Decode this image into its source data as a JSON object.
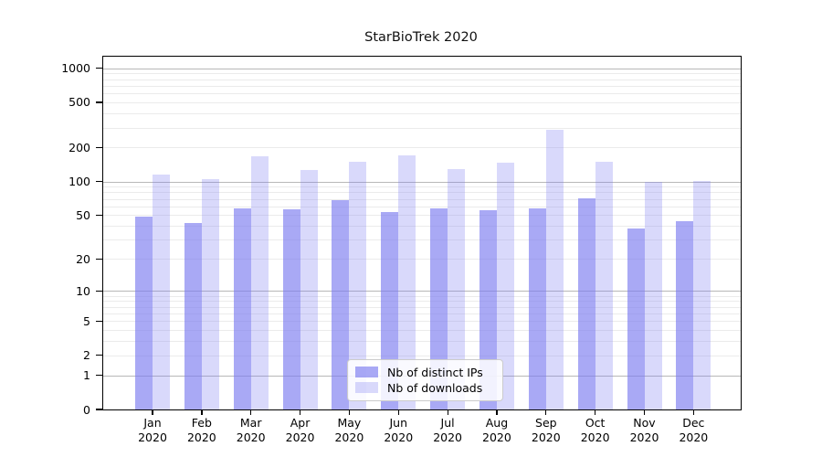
{
  "chart_data": {
    "type": "bar",
    "title": "StarBioTrek 2020",
    "categories": [
      "Jan 2020",
      "Feb 2020",
      "Mar 2020",
      "Apr 2020",
      "May 2020",
      "Jun 2020",
      "Jul 2020",
      "Aug 2020",
      "Sep 2020",
      "Oct 2020",
      "Nov 2020",
      "Dec 2020"
    ],
    "series": [
      {
        "name": "Nb of distinct IPs",
        "values": [
          49,
          43,
          58,
          57,
          68,
          53,
          58,
          55,
          58,
          71,
          38,
          44
        ],
        "color_rgba": "rgba(124,124,240,0.66)"
      },
      {
        "name": "Nb of downloads",
        "values": [
          115,
          105,
          166,
          127,
          150,
          170,
          130,
          146,
          285,
          150,
          100,
          101
        ],
        "color_rgba": "rgba(124,124,240,0.29)"
      }
    ],
    "xlabel": "",
    "ylabel": "",
    "y_scale": "symlog",
    "y_ticks": [
      1000,
      500,
      200,
      100,
      50,
      20,
      10,
      5,
      2,
      1,
      0
    ],
    "ylim": [
      0,
      1255
    ],
    "grid": true,
    "gridline_major_values": [
      1,
      10,
      100,
      1000
    ],
    "gridline_minor_values": [
      2,
      3,
      4,
      5,
      6,
      7,
      8,
      9,
      20,
      30,
      40,
      50,
      60,
      70,
      80,
      90,
      200,
      300,
      400,
      500,
      600,
      700,
      800,
      900
    ],
    "legend_position": "lower center",
    "colors": {
      "bar_base": "#7c7cf0",
      "grid_major": "#b8b8b8",
      "grid_minor": "#ebebeb",
      "axis": "#000000"
    }
  }
}
